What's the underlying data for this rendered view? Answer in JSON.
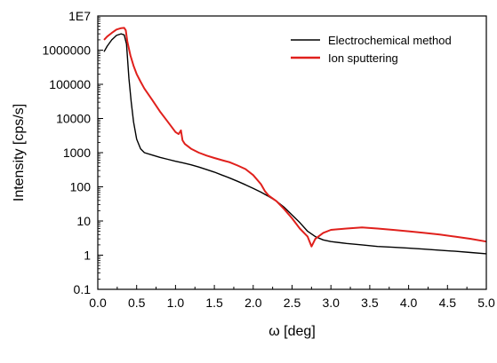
{
  "chart_data": {
    "type": "line",
    "xlabel": "ω [deg]",
    "ylabel": "Intensity [cps/s]",
    "xlim": [
      0.0,
      5.0
    ],
    "ylim": [
      0.1,
      10000000
    ],
    "yscale": "log",
    "grid": false,
    "legend_position": "top-right",
    "x_ticks": [
      "0.0",
      "0.5",
      "1.0",
      "1.5",
      "2.0",
      "2.5",
      "3.0",
      "3.5",
      "4.0",
      "4.5",
      "5.0"
    ],
    "y_ticks": [
      "0.1",
      "1",
      "10",
      "100",
      "1000",
      "10000",
      "100000",
      "1000000",
      "1E7"
    ],
    "series": [
      {
        "name": "Electrochemical method",
        "color": "#000000",
        "x": [
          0.08,
          0.12,
          0.18,
          0.24,
          0.3,
          0.34,
          0.37,
          0.4,
          0.43,
          0.46,
          0.5,
          0.55,
          0.6,
          0.7,
          0.8,
          0.9,
          1.0,
          1.1,
          1.2,
          1.3,
          1.4,
          1.5,
          1.6,
          1.7,
          1.8,
          1.9,
          2.0,
          2.1,
          2.2,
          2.3,
          2.4,
          2.5,
          2.6,
          2.7,
          2.8,
          2.9,
          3.0,
          3.2,
          3.4,
          3.6,
          3.8,
          4.0,
          4.2,
          4.4,
          4.6,
          4.8,
          5.0
        ],
        "y": [
          900000,
          1300000,
          2000000,
          2700000,
          3000000,
          2800000,
          1500000,
          150000,
          30000,
          8000,
          2500,
          1300,
          1000,
          850,
          730,
          640,
          560,
          500,
          440,
          380,
          320,
          270,
          220,
          180,
          145,
          115,
          90,
          70,
          52,
          38,
          25,
          15,
          9,
          5,
          3.5,
          2.8,
          2.5,
          2.2,
          2.0,
          1.8,
          1.7,
          1.6,
          1.5,
          1.4,
          1.3,
          1.2,
          1.1
        ]
      },
      {
        "name": "Ion sputtering",
        "color": "#e0201c",
        "x": [
          0.08,
          0.12,
          0.18,
          0.24,
          0.3,
          0.34,
          0.36,
          0.38,
          0.42,
          0.46,
          0.5,
          0.55,
          0.6,
          0.7,
          0.8,
          0.9,
          1.0,
          1.04,
          1.07,
          1.09,
          1.12,
          1.2,
          1.3,
          1.4,
          1.5,
          1.6,
          1.7,
          1.8,
          1.9,
          2.0,
          2.1,
          2.15,
          2.2,
          2.3,
          2.4,
          2.5,
          2.6,
          2.7,
          2.75,
          2.8,
          2.9,
          3.0,
          3.2,
          3.4,
          3.6,
          3.8,
          4.0,
          4.2,
          4.4,
          4.6,
          4.8,
          5.0
        ],
        "y": [
          2000000,
          2500000,
          3200000,
          4000000,
          4400000,
          4500000,
          3800000,
          1800000,
          700000,
          350000,
          200000,
          120000,
          75000,
          35000,
          16000,
          8000,
          4000,
          3500,
          4500,
          2300,
          1800,
          1300,
          1000,
          820,
          700,
          600,
          520,
          420,
          330,
          220,
          120,
          75,
          55,
          38,
          22,
          12,
          6,
          3.5,
          1.8,
          3,
          4.5,
          5.5,
          6,
          6.5,
          6,
          5.5,
          5,
          4.5,
          4,
          3.5,
          3,
          2.5
        ]
      }
    ]
  }
}
